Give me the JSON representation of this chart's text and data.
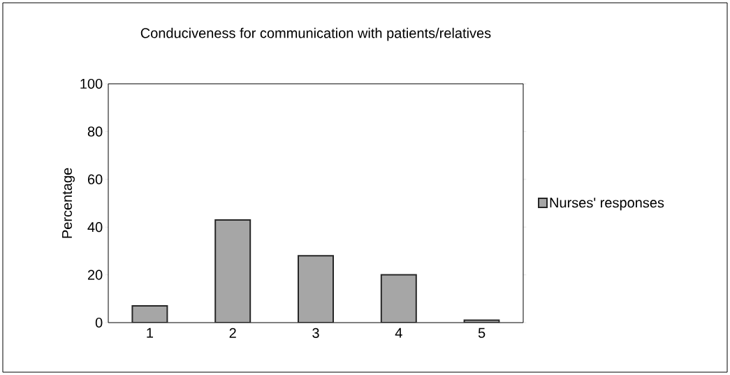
{
  "chart_data": {
    "type": "bar",
    "title": "Conduciveness for communication with patients/relatives",
    "ylabel": "Percentage",
    "categories": [
      "1",
      "2",
      "3",
      "4",
      "5"
    ],
    "series": [
      {
        "name": "Nurses' responses",
        "color": "#a6a6a6",
        "values": [
          7,
          43,
          28,
          20,
          1
        ]
      }
    ],
    "ylim": [
      0,
      100
    ],
    "yticks": [
      0,
      20,
      40,
      60,
      80,
      100
    ],
    "grid": false,
    "legend": "right"
  }
}
